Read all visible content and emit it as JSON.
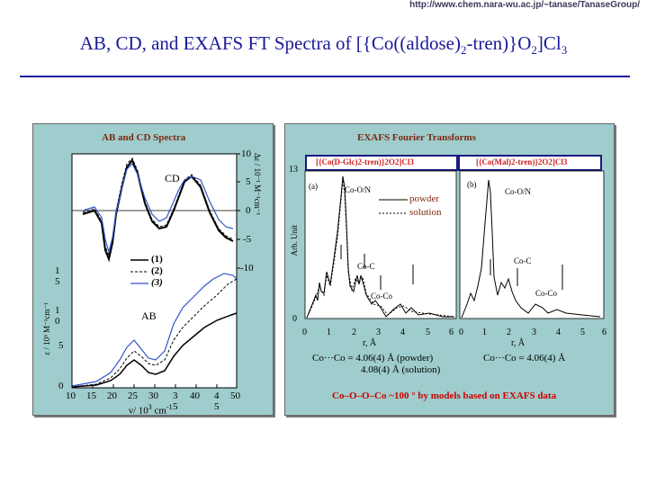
{
  "url": "http://www.chem.nara-wu.ac.jp/~tanase/TanaseGroup/",
  "title": {
    "pre": "AB, CD, and EXAFS FT Spectra of [{Co((aldose)",
    "sub1": "2",
    "mid": "-tren)}O",
    "sub2": "2",
    "mid2": "]Cl",
    "sub3": "3"
  },
  "left_panel": {
    "title": "AB and CD Spectra",
    "cd_label": "CD",
    "ab_label": "AB",
    "legend": [
      "(1)",
      "(2)",
      "(3)"
    ],
    "x_ticks": [
      "10",
      "15",
      "20",
      "25",
      "30",
      "3",
      "40",
      "4",
      "50"
    ],
    "x_tick_sub": [
      "5",
      "5"
    ],
    "x_label": "ν/ 10",
    "x_label_sup": "3",
    "x_label_unit": " cm",
    "x_label_unit_sup": "-1",
    "y_left_ticks": [
      "1",
      "5",
      "1",
      "0",
      "5",
      "0"
    ],
    "y_left_label": "ε / 10³ M⁻¹cm⁻¹",
    "y_right_ticks": [
      "10",
      "5",
      "0",
      "-5",
      "-10"
    ],
    "y_right_label": "Δε / 10⁻¹ M⁻¹cm⁻¹"
  },
  "right_panel": {
    "title": "EXAFS Fourier Transforms",
    "header_a": "[{Co(D-Glc)2-tren)}2O2]Cl3",
    "header_b": "[{Co(Mal)2-tren)}2O2]Cl3",
    "label_a": "(a)",
    "label_b": "(b)",
    "y_max": "13",
    "y_min": "0",
    "y_label": "Arb. Unit",
    "legend_powder": "powder",
    "legend_solution": "solution",
    "peak_coo": "Co-O/N",
    "peak_coc": "Co-C",
    "peak_coco": "Co-Co",
    "x_ticks": [
      "0",
      "1",
      "2",
      "3",
      "4",
      "5",
      "6"
    ],
    "x_label": "r, Å",
    "dist_a_line1": "Co···Co = 4.06(4) Å (powder)",
    "dist_a_line2": "4.08(4) Å (solution)",
    "dist_b": "Co···Co = 4.06(4) Å",
    "footer": "Co–O–O–Co ~100 ° by models based on EXAFS data"
  },
  "colors": {
    "title": "#1a1a9a",
    "panel_bg": "#9fcccc",
    "header_bg": "#1a1a80",
    "header_text": "#cc2222",
    "footer": "#cc0000"
  }
}
